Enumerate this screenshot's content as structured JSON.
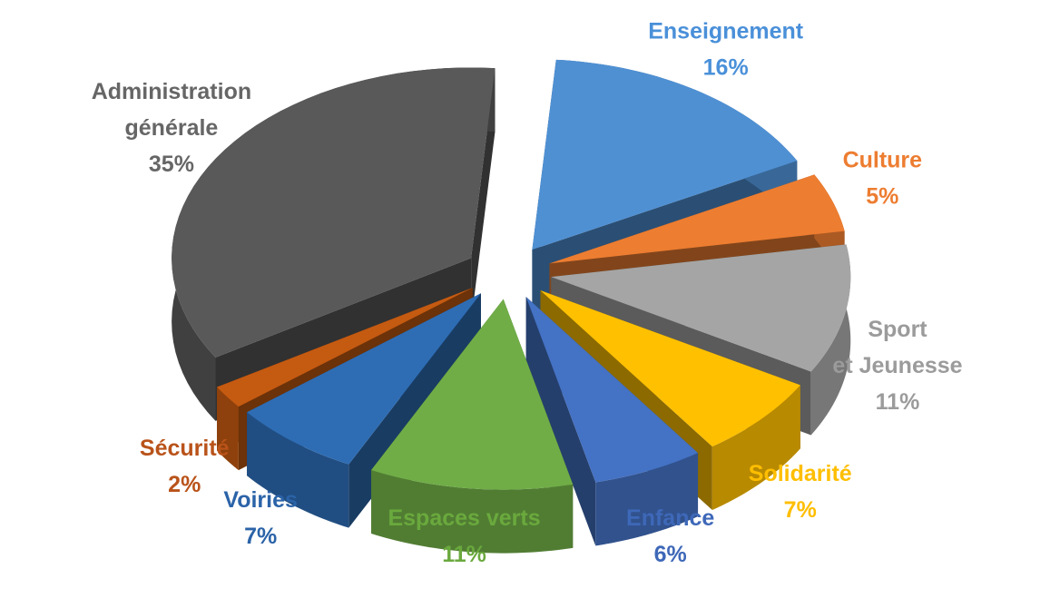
{
  "chart_data": {
    "type": "pie",
    "style": "3d-exploded",
    "title": "",
    "slices": [
      {
        "name": "Enseignement",
        "label_lines": [
          "Enseignement"
        ],
        "value": 16,
        "value_label": "16%",
        "color": "#4f90d3",
        "text_color": "#4a90d9"
      },
      {
        "name": "Culture",
        "label_lines": [
          "Culture"
        ],
        "value": 5,
        "value_label": "5%",
        "color": "#ed7d31",
        "text_color": "#ed7d31"
      },
      {
        "name": "Sport et Jeunesse",
        "label_lines": [
          "Sport",
          "et Jeunesse"
        ],
        "value": 11,
        "value_label": "11%",
        "color": "#a5a5a5",
        "text_color": "#9b9b9b"
      },
      {
        "name": "Solidarité",
        "label_lines": [
          "Solidarité"
        ],
        "value": 7,
        "value_label": "7%",
        "color": "#ffc000",
        "text_color": "#ffbe00"
      },
      {
        "name": "Enfance",
        "label_lines": [
          "Enfance"
        ],
        "value": 6,
        "value_label": "6%",
        "color": "#4472c4",
        "text_color": "#3e68b8"
      },
      {
        "name": "Espaces verts",
        "label_lines": [
          "Espaces verts"
        ],
        "value": 11,
        "value_label": "11%",
        "color": "#70ad47",
        "text_color": "#6aa93d"
      },
      {
        "name": "Voiries",
        "label_lines": [
          "Voiries"
        ],
        "value": 7,
        "value_label": "7%",
        "color": "#2e6db4",
        "text_color": "#2b63a8"
      },
      {
        "name": "Sécurité",
        "label_lines": [
          "Sécurité"
        ],
        "value": 2,
        "value_label": "2%",
        "color": "#c55a11",
        "text_color": "#b9531a"
      },
      {
        "name": "Administration générale",
        "label_lines": [
          "Administration",
          "générale"
        ],
        "value": 35,
        "value_label": "35%",
        "color": "#595959",
        "text_color": "#666666"
      }
    ],
    "legend": "none",
    "labels": "outside"
  }
}
